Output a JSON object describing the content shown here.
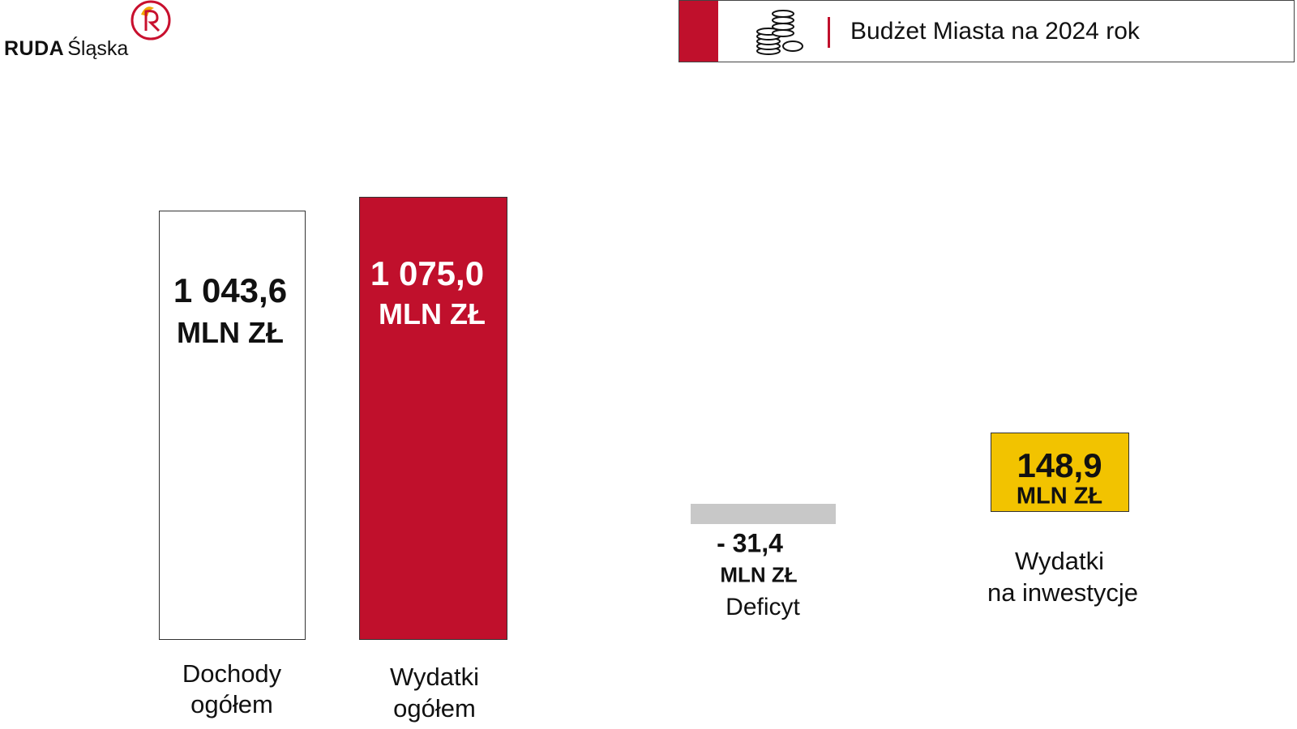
{
  "header": {
    "logo": {
      "brand": "RUDA",
      "sub": "Śląska"
    },
    "title": "Budżet Miasta na 2024 rok"
  },
  "items": [
    {
      "value": "1 043,6",
      "unit": "MLN ZŁ",
      "label": [
        "Dochody",
        "ogółem"
      ]
    },
    {
      "value": "1 075,0",
      "unit": "MLN ZŁ",
      "label": [
        "Wydatki",
        "ogółem"
      ]
    },
    {
      "value": "- 31,4",
      "unit": "MLN ZŁ",
      "label": [
        "Deficyt"
      ]
    },
    {
      "value": "148,9",
      "unit": "MLN ZŁ",
      "label": [
        "Wydatki",
        "na inwestycje"
      ]
    }
  ]
}
